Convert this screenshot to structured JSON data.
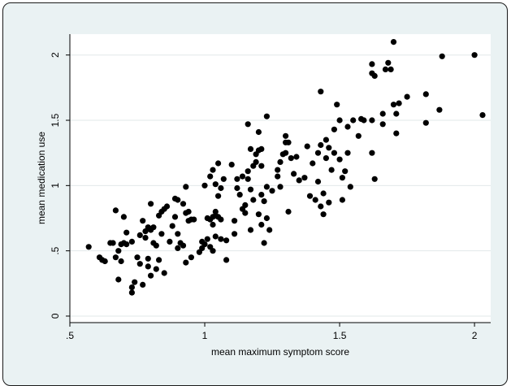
{
  "chart_data": {
    "type": "scatter",
    "title": "",
    "xlabel": "mean maximum symptom score",
    "ylabel": "mean medication use",
    "xlim": [
      0.5,
      2.06
    ],
    "ylim": [
      -0.05,
      2.16
    ],
    "xticks": [
      0.5,
      1,
      1.5,
      2
    ],
    "xtick_labels": [
      ".5",
      "1",
      "1.5",
      "2"
    ],
    "yticks": [
      0,
      0.5,
      1,
      1.5,
      2
    ],
    "ytick_labels": [
      "0",
      ".5",
      "1",
      "1.5",
      "2"
    ],
    "grid": "horizontal",
    "legend": "none",
    "colors": {
      "marker": "#000000",
      "plot_background": "#ffffff",
      "outer_background": "#eaf2f3",
      "gridline": "#e2e8e9"
    },
    "points": [
      [
        0.57,
        0.53
      ],
      [
        0.61,
        0.45
      ],
      [
        0.62,
        0.43
      ],
      [
        0.63,
        0.42
      ],
      [
        0.65,
        0.56
      ],
      [
        0.66,
        0.56
      ],
      [
        0.67,
        0.45
      ],
      [
        0.67,
        0.81
      ],
      [
        0.68,
        0.5
      ],
      [
        0.68,
        0.28
      ],
      [
        0.69,
        0.55
      ],
      [
        0.69,
        0.42
      ],
      [
        0.7,
        0.76
      ],
      [
        0.7,
        0.56
      ],
      [
        0.71,
        0.64
      ],
      [
        0.71,
        0.55
      ],
      [
        0.73,
        0.57
      ],
      [
        0.73,
        0.22
      ],
      [
        0.73,
        0.18
      ],
      [
        0.74,
        0.26
      ],
      [
        0.75,
        0.45
      ],
      [
        0.76,
        0.62
      ],
      [
        0.76,
        0.4
      ],
      [
        0.77,
        0.73
      ],
      [
        0.77,
        0.24
      ],
      [
        0.78,
        0.65
      ],
      [
        0.78,
        0.6
      ],
      [
        0.79,
        0.68
      ],
      [
        0.79,
        0.38
      ],
      [
        0.79,
        0.44
      ],
      [
        0.8,
        0.86
      ],
      [
        0.8,
        0.31
      ],
      [
        0.8,
        0.66
      ],
      [
        0.81,
        0.56
      ],
      [
        0.81,
        0.68
      ],
      [
        0.82,
        0.54
      ],
      [
        0.82,
        0.36
      ],
      [
        0.83,
        0.43
      ],
      [
        0.83,
        0.77
      ],
      [
        0.84,
        0.8
      ],
      [
        0.84,
        0.63
      ],
      [
        0.85,
        0.82
      ],
      [
        0.85,
        0.33
      ],
      [
        0.86,
        0.84
      ],
      [
        0.87,
        0.57
      ],
      [
        0.88,
        0.69
      ],
      [
        0.89,
        0.9
      ],
      [
        0.89,
        0.76
      ],
      [
        0.9,
        0.89
      ],
      [
        0.9,
        0.63
      ],
      [
        0.9,
        0.52
      ],
      [
        0.91,
        0.56
      ],
      [
        0.92,
        0.54
      ],
      [
        0.92,
        0.86
      ],
      [
        0.93,
        0.79
      ],
      [
        0.93,
        0.41
      ],
      [
        0.93,
        0.99
      ],
      [
        0.94,
        0.8
      ],
      [
        0.94,
        0.73
      ],
      [
        0.95,
        0.74
      ],
      [
        0.95,
        0.45
      ],
      [
        0.96,
        0.74
      ],
      [
        0.98,
        0.49
      ],
      [
        0.99,
        0.52
      ],
      [
        0.99,
        0.57
      ],
      [
        1.0,
        1.0
      ],
      [
        1.0,
        0.55
      ],
      [
        1.01,
        0.75
      ],
      [
        1.01,
        0.59
      ],
      [
        1.02,
        0.74
      ],
      [
        1.02,
        0.53
      ],
      [
        1.02,
        1.07
      ],
      [
        1.03,
        1.12
      ],
      [
        1.03,
        0.76
      ],
      [
        1.03,
        0.7
      ],
      [
        1.03,
        0.5
      ],
      [
        1.04,
        0.77
      ],
      [
        1.04,
        1.01
      ],
      [
        1.04,
        0.61
      ],
      [
        1.04,
        0.8
      ],
      [
        1.05,
        0.76
      ],
      [
        1.05,
        1.17
      ],
      [
        1.05,
        0.92
      ],
      [
        1.06,
        0.98
      ],
      [
        1.06,
        0.59
      ],
      [
        1.06,
        0.74
      ],
      [
        1.07,
        1.05
      ],
      [
        1.08,
        0.43
      ],
      [
        1.08,
        0.58
      ],
      [
        1.1,
        1.16
      ],
      [
        1.11,
        0.73
      ],
      [
        1.11,
        0.63
      ],
      [
        1.12,
        0.98
      ],
      [
        1.12,
        1.05
      ],
      [
        1.13,
        0.93
      ],
      [
        1.14,
        1.07
      ],
      [
        1.14,
        0.82
      ],
      [
        1.15,
        0.85
      ],
      [
        1.15,
        0.79
      ],
      [
        1.16,
        1.47
      ],
      [
        1.16,
        1.05
      ],
      [
        1.16,
        1.11
      ],
      [
        1.17,
        1.28
      ],
      [
        1.17,
        0.97
      ],
      [
        1.17,
        0.66
      ],
      [
        1.18,
        1.15
      ],
      [
        1.18,
        0.89
      ],
      [
        1.19,
        1.24
      ],
      [
        1.19,
        1.18
      ],
      [
        1.2,
        1.27
      ],
      [
        1.2,
        1.41
      ],
      [
        1.2,
        0.78
      ],
      [
        1.21,
        1.28
      ],
      [
        1.21,
        1.15
      ],
      [
        1.21,
        0.7
      ],
      [
        1.21,
        0.93
      ],
      [
        1.22,
        0.88
      ],
      [
        1.22,
        0.56
      ],
      [
        1.23,
        1.53
      ],
      [
        1.23,
        0.99
      ],
      [
        1.23,
        0.75
      ],
      [
        1.24,
        0.66
      ],
      [
        1.25,
        0.96
      ],
      [
        1.27,
        1.12
      ],
      [
        1.27,
        1.07
      ],
      [
        1.28,
        1.18
      ],
      [
        1.28,
        0.99
      ],
      [
        1.29,
        1.24
      ],
      [
        1.3,
        1.38
      ],
      [
        1.3,
        1.33
      ],
      [
        1.3,
        1.25
      ],
      [
        1.31,
        0.8
      ],
      [
        1.31,
        1.33
      ],
      [
        1.32,
        1.21
      ],
      [
        1.33,
        1.09
      ],
      [
        1.34,
        1.22
      ],
      [
        1.35,
        1.04
      ],
      [
        1.37,
        1.06
      ],
      [
        1.38,
        1.3
      ],
      [
        1.39,
        0.92
      ],
      [
        1.4,
        1.17
      ],
      [
        1.41,
        0.89
      ],
      [
        1.42,
        1.03
      ],
      [
        1.42,
        1.25
      ],
      [
        1.43,
        0.84
      ],
      [
        1.43,
        1.72
      ],
      [
        1.43,
        1.31
      ],
      [
        1.44,
        0.94
      ],
      [
        1.44,
        0.78
      ],
      [
        1.45,
        1.21
      ],
      [
        1.45,
        1.35
      ],
      [
        1.46,
        1.29
      ],
      [
        1.46,
        0.87
      ],
      [
        1.47,
        1.12
      ],
      [
        1.48,
        1.43
      ],
      [
        1.48,
        1.25
      ],
      [
        1.49,
        1.62
      ],
      [
        1.5,
        1.5
      ],
      [
        1.5,
        1.2
      ],
      [
        1.51,
        1.06
      ],
      [
        1.51,
        0.89
      ],
      [
        1.52,
        1.11
      ],
      [
        1.53,
        1.45
      ],
      [
        1.53,
        1.25
      ],
      [
        1.54,
        0.99
      ],
      [
        1.55,
        1.5
      ],
      [
        1.57,
        1.38
      ],
      [
        1.58,
        1.51
      ],
      [
        1.59,
        1.5
      ],
      [
        1.62,
        1.25
      ],
      [
        1.62,
        1.93
      ],
      [
        1.62,
        1.86
      ],
      [
        1.62,
        1.5
      ],
      [
        1.63,
        1.05
      ],
      [
        1.63,
        1.84
      ],
      [
        1.66,
        1.55
      ],
      [
        1.66,
        1.47
      ],
      [
        1.67,
        1.89
      ],
      [
        1.68,
        1.94
      ],
      [
        1.69,
        1.89
      ],
      [
        1.7,
        2.1
      ],
      [
        1.7,
        1.62
      ],
      [
        1.71,
        1.55
      ],
      [
        1.71,
        1.4
      ],
      [
        1.72,
        1.63
      ],
      [
        1.75,
        1.68
      ],
      [
        1.82,
        1.7
      ],
      [
        1.82,
        1.48
      ],
      [
        1.87,
        1.58
      ],
      [
        1.88,
        1.99
      ],
      [
        2.0,
        2.0
      ],
      [
        2.03,
        1.54
      ]
    ]
  }
}
